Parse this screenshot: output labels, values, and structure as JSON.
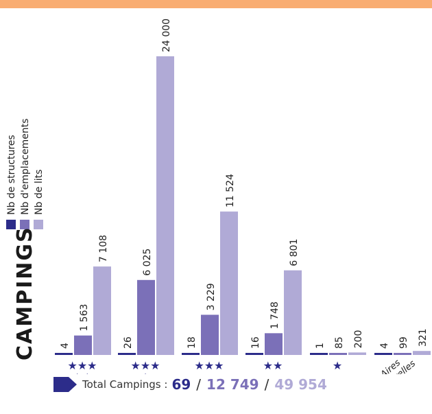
{
  "header_band_color": "#f9ad72",
  "title": "CAMPINGS",
  "legend": [
    {
      "label": "Nb de structures",
      "color": "#2c2c8a"
    },
    {
      "label": "Nb d'emplacements",
      "color": "#7b70b8"
    },
    {
      "label": "Nb de lits",
      "color": "#b0aad6"
    }
  ],
  "chart_data": {
    "type": "bar",
    "categories": [
      "★★★★★",
      "★★★★",
      "★★★",
      "★★",
      "★",
      "Aires naturelles"
    ],
    "category_stars": [
      5,
      4,
      3,
      2,
      1,
      0
    ],
    "category_label_text": [
      "",
      "",
      "",
      "",
      "",
      "Aires naturelles"
    ],
    "series": [
      {
        "name": "Nb de structures",
        "values": [
          4,
          26,
          18,
          16,
          1,
          4
        ],
        "labels": [
          "4",
          "26",
          "18",
          "16",
          "1",
          "4"
        ],
        "color": "#2c2c8a"
      },
      {
        "name": "Nb d'emplacements",
        "values": [
          1563,
          6025,
          3229,
          1748,
          85,
          99
        ],
        "labels": [
          "1 563",
          "6 025",
          "3 229",
          "1 748",
          "85",
          "99"
        ],
        "color": "#7b70b8"
      },
      {
        "name": "Nb de lits",
        "values": [
          7108,
          24000,
          11524,
          6801,
          200,
          321
        ],
        "labels": [
          "7 108",
          "24 000",
          "11 524",
          "6 801",
          "200",
          "321"
        ],
        "color": "#b0aad6"
      }
    ],
    "ylim": [
      0,
      24000
    ],
    "grid": false
  },
  "footer": {
    "label": "Total Campings :",
    "totals": [
      {
        "value": "69",
        "color": "#2c2c8a"
      },
      {
        "value": "12 749",
        "color": "#7b70b8"
      },
      {
        "value": "49 954",
        "color": "#b0aad6"
      }
    ],
    "separator": "/"
  }
}
